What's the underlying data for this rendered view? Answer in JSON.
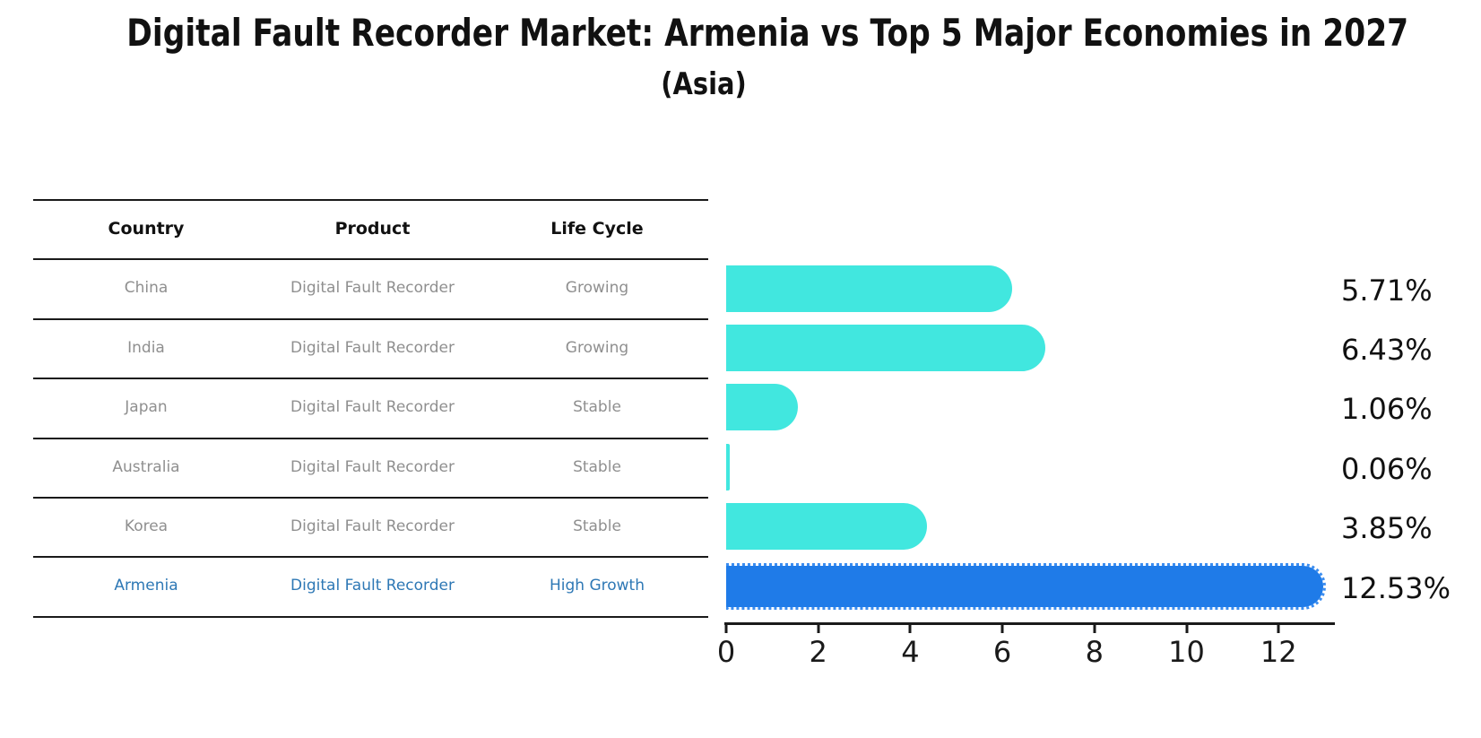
{
  "title": "Digital Fault Recorder Market: Armenia vs Top 5 Major Economies in 2027",
  "subtitle": "(Asia)",
  "table": {
    "headers": [
      "Country",
      "Product",
      "Life Cycle"
    ],
    "rows": [
      {
        "country": "China",
        "product": "Digital Fault Recorder",
        "life_cycle": "Growing",
        "highlight": false
      },
      {
        "country": "India",
        "product": "Digital Fault Recorder",
        "life_cycle": "Growing",
        "highlight": false
      },
      {
        "country": "Japan",
        "product": "Digital Fault Recorder",
        "life_cycle": "Stable",
        "highlight": false
      },
      {
        "country": "Australia",
        "product": "Digital Fault Recorder",
        "life_cycle": "Stable",
        "highlight": false
      },
      {
        "country": "Korea",
        "product": "Digital Fault Recorder",
        "life_cycle": "Stable",
        "highlight": false
      },
      {
        "country": "Armenia",
        "product": "Digital Fault Recorder",
        "life_cycle": "High Growth",
        "highlight": true
      }
    ]
  },
  "chart_data": {
    "type": "bar",
    "orientation": "horizontal",
    "title": "Digital Fault Recorder Market: Armenia vs Top 5 Major Economies in 2027",
    "subtitle": "(Asia)",
    "categories": [
      "China",
      "India",
      "Japan",
      "Australia",
      "Korea",
      "Armenia"
    ],
    "values": [
      5.71,
      6.43,
      1.06,
      0.06,
      3.85,
      12.53
    ],
    "value_labels": [
      "5.71%",
      "6.43%",
      "1.06%",
      "0.06%",
      "3.85%",
      "12.53%"
    ],
    "x_ticks": [
      0,
      2,
      4,
      6,
      8,
      10,
      12
    ],
    "xlim": [
      0,
      13.2
    ],
    "grid": false,
    "legend": false,
    "highlight_index": 5,
    "bar_color": "#41e7df",
    "highlight_color": "#1f7be8",
    "highlight_text_color": "#2e78b5",
    "text_color": "#111111",
    "muted_text_color": "#8f8f8f"
  }
}
